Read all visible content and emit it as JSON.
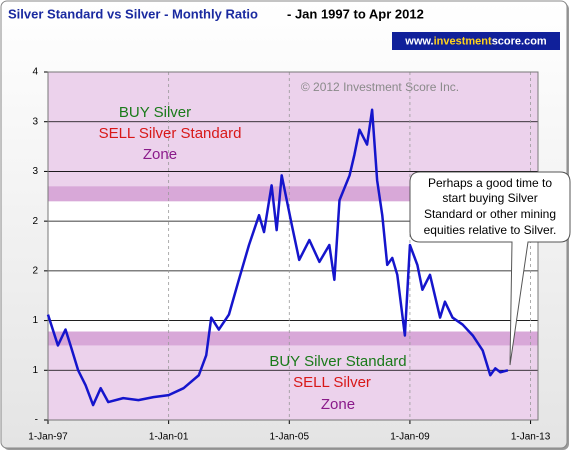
{
  "chart_data": {
    "type": "line",
    "title": "Silver Standard vs Silver - Monthly Ratio",
    "subtitle": "- Jan 1997 to Apr 2012",
    "badge": [
      "www.",
      "investment",
      "score.com"
    ],
    "copyright": "© 2012 Investment Score Inc.",
    "annotations": [
      "BUY Silver",
      "SELL Silver Standard",
      "Zone",
      "BUY Silver Standard",
      "SELL Silver",
      "Zone"
    ],
    "callout": [
      "Perhaps a good time to",
      "start buying Silver",
      "Standard or other mining",
      "equities relative to Silver."
    ],
    "xlim": [
      "1997-01-01",
      "2013-04-01"
    ],
    "xticks": [
      {
        "value": "1997-01-01",
        "label": "1-Jan-97"
      },
      {
        "value": "2001-01-01",
        "label": "1-Jan-01"
      },
      {
        "value": "2005-01-01",
        "label": "1-Jan-05"
      },
      {
        "value": "2009-01-01",
        "label": "1-Jan-09"
      },
      {
        "value": "2013-01-01",
        "label": "1-Jan-13"
      }
    ],
    "ylim": [
      0,
      3.5
    ],
    "yticks": [
      {
        "value": 0,
        "label": "-"
      },
      {
        "value": 0.5,
        "label": "1"
      },
      1,
      {
        "value": 1.5,
        "label": "2"
      },
      2,
      {
        "value": 2.5,
        "label": "3"
      },
      3,
      {
        "value": 3.5,
        "label": "4"
      }
    ],
    "grid": true,
    "zones": [
      {
        "from": 2.2,
        "to": 2.35
      },
      {
        "from": 0.75,
        "to": 0.89
      }
    ],
    "zone_color": "#d8a8d8",
    "outer_zone_color": "#ecd2ec",
    "series": [
      {
        "color": "#1515cc",
        "x": [
          "1997-01",
          "1997-05",
          "1997-08",
          "1997-10",
          "1998-01",
          "1998-04",
          "1998-07",
          "1998-10",
          "1999-01",
          "1999-07",
          "2000-01",
          "2000-07",
          "2001-01",
          "2001-07",
          "2002-01",
          "2002-04",
          "2002-06",
          "2002-09",
          "2003-01",
          "2003-05",
          "2003-09",
          "2004-01",
          "2004-03",
          "2004-06",
          "2004-08",
          "2004-10",
          "2005-02",
          "2005-05",
          "2005-09",
          "2006-01",
          "2006-05",
          "2006-07",
          "2006-09",
          "2007-01",
          "2007-03",
          "2007-05",
          "2007-08",
          "2007-10",
          "2007-12",
          "2008-02",
          "2008-04",
          "2008-06",
          "2008-08",
          "2008-11",
          "2009-01",
          "2009-04",
          "2009-06",
          "2009-09",
          "2010-01",
          "2010-03",
          "2010-06",
          "2010-10",
          "2011-02",
          "2011-06",
          "2011-09",
          "2011-11",
          "2012-01",
          "2012-04"
        ],
        "values": [
          1.06,
          0.75,
          0.91,
          0.75,
          0.5,
          0.35,
          0.15,
          0.32,
          0.18,
          0.22,
          0.2,
          0.23,
          0.25,
          0.32,
          0.45,
          0.65,
          1.03,
          0.91,
          1.06,
          1.41,
          1.76,
          2.06,
          1.89,
          2.36,
          1.91,
          2.46,
          1.96,
          1.61,
          1.81,
          1.59,
          1.76,
          1.41,
          2.21,
          2.46,
          2.67,
          2.92,
          2.77,
          3.12,
          2.41,
          2.06,
          1.56,
          1.63,
          1.46,
          0.85,
          1.76,
          1.56,
          1.31,
          1.46,
          1.03,
          1.19,
          1.03,
          0.96,
          0.85,
          0.7,
          0.45,
          0.52,
          0.48,
          0.5
        ]
      }
    ]
  }
}
